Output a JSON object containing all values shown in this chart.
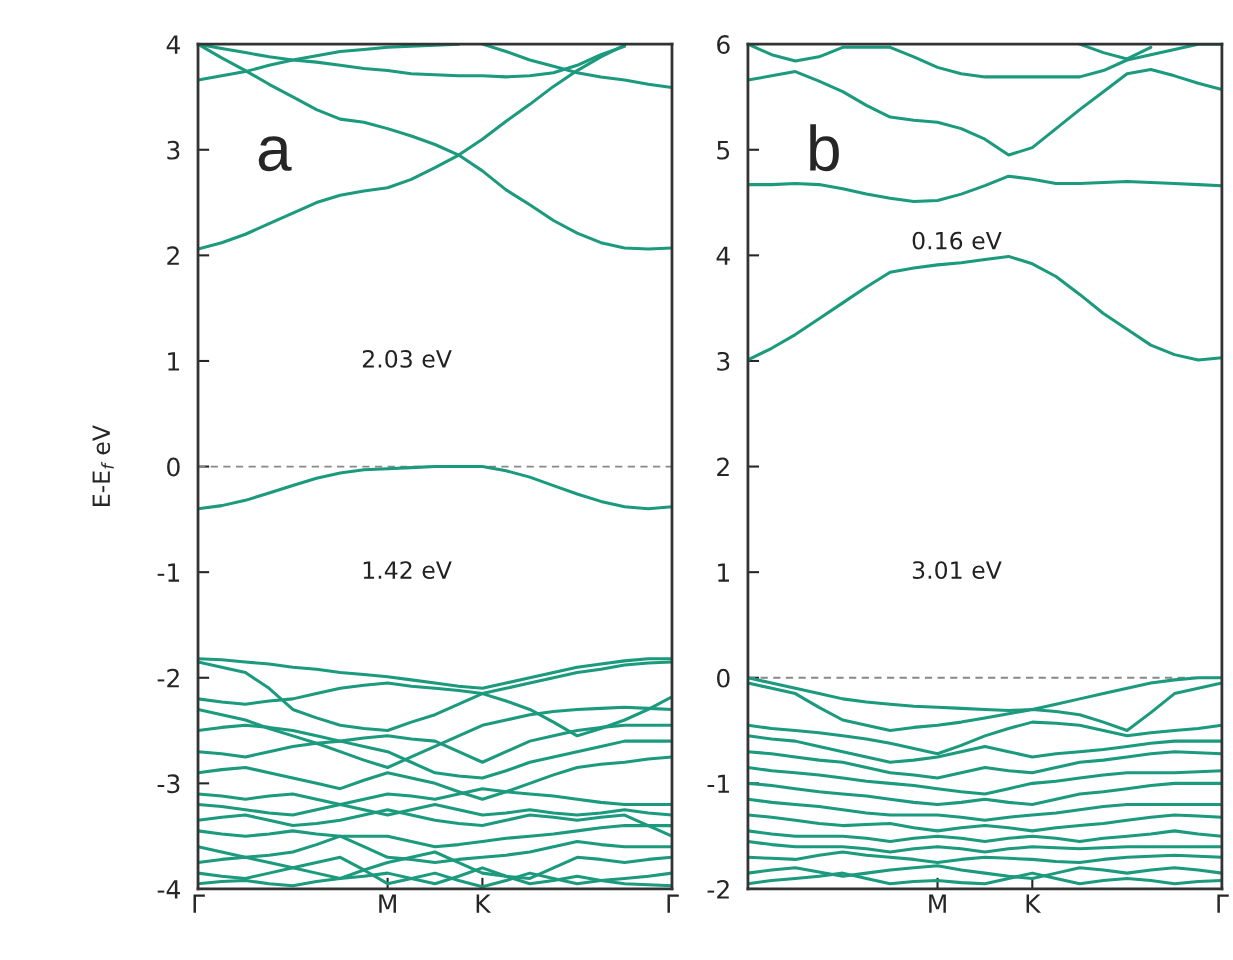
{
  "chart_data": [
    {
      "type": "line",
      "title": "a",
      "ylabel": "E-E$_{f}$ eV",
      "ylim": [
        -4,
        4
      ],
      "yticks": [
        -4,
        -3,
        -2,
        -1,
        0,
        1,
        2,
        3,
        4
      ],
      "categories": [
        "Γ",
        null,
        null,
        null,
        null,
        null,
        null,
        null,
        "M",
        null,
        null,
        null,
        "K",
        null,
        null,
        null,
        null,
        null,
        null,
        null,
        "Γ"
      ],
      "ref_lines": [
        {
          "axis": "y",
          "value": 0,
          "color": "#888888",
          "line_style": "dashed"
        }
      ],
      "annotations": [
        "2.03 eV",
        "1.42 eV"
      ],
      "series": [
        {
          "color": "#1b9a7e",
          "values": [
            2.06,
            2.12,
            2.2,
            2.3,
            2.4,
            2.5,
            2.57,
            2.61,
            2.64,
            2.72,
            2.83,
            2.95,
            3.1,
            3.27,
            3.43,
            3.6,
            3.75,
            3.88,
            3.99,
            null,
            null
          ]
        },
        {
          "color": "#1b9a7e",
          "values": [
            4.0,
            3.87,
            3.75,
            3.62,
            3.5,
            3.38,
            3.29,
            3.26,
            3.2,
            3.13,
            3.05,
            2.95,
            2.8,
            2.62,
            2.48,
            2.33,
            2.21,
            2.12,
            2.07,
            2.06,
            2.07
          ]
        },
        {
          "color": "#1b9a7e",
          "values": [
            3.66,
            3.7,
            3.74,
            3.8,
            3.85,
            3.89,
            3.93,
            3.95,
            3.97,
            3.98,
            3.99,
            4.0,
            null,
            null,
            null,
            null,
            null,
            null,
            null,
            null,
            null
          ]
        },
        {
          "color": "#1b9a7e",
          "values": [
            4.0,
            3.96,
            3.92,
            3.88,
            3.85,
            3.83,
            3.8,
            3.77,
            3.75,
            3.72,
            3.71,
            3.7,
            3.7,
            3.69,
            3.7,
            3.73,
            3.8,
            3.9,
            3.98,
            null,
            null
          ]
        },
        {
          "color": "#1b9a7e",
          "values": [
            null,
            null,
            null,
            null,
            null,
            null,
            null,
            null,
            null,
            null,
            null,
            null,
            4.0,
            3.93,
            3.85,
            3.79,
            3.73,
            3.69,
            3.66,
            3.62,
            3.59
          ]
        },
        {
          "color": "#1b9a7e",
          "values": [
            -0.4,
            -0.37,
            -0.32,
            -0.25,
            -0.18,
            -0.11,
            -0.06,
            -0.03,
            -0.02,
            -0.01,
            0,
            0,
            0,
            -0.04,
            -0.1,
            -0.18,
            -0.26,
            -0.33,
            -0.38,
            -0.4,
            -0.38
          ]
        },
        {
          "color": "#1b9a7e",
          "values": [
            -1.82,
            -1.83,
            -1.85,
            -1.87,
            -1.9,
            -1.92,
            -1.95,
            -1.97,
            -1.99,
            -2.02,
            -2.05,
            -2.08,
            -2.1,
            -2.05,
            -2.0,
            -1.95,
            -1.9,
            -1.87,
            -1.84,
            -1.82,
            -1.82
          ]
        },
        {
          "color": "#1b9a7e",
          "values": [
            -1.85,
            -1.9,
            -1.95,
            -2.1,
            -2.3,
            -2.38,
            -2.45,
            -2.48,
            -2.5,
            -2.42,
            -2.35,
            -2.25,
            -2.15,
            -2.1,
            -2.05,
            -2.0,
            -1.95,
            -1.92,
            -1.88,
            -1.86,
            -1.85
          ]
        },
        {
          "color": "#1b9a7e",
          "values": [
            -2.2,
            -2.23,
            -2.25,
            -2.22,
            -2.2,
            -2.15,
            -2.1,
            -2.07,
            -2.05,
            -2.08,
            -2.1,
            -2.12,
            -2.15,
            -2.22,
            -2.3,
            -2.42,
            -2.55,
            -2.48,
            -2.4,
            -2.3,
            -2.18
          ]
        },
        {
          "color": "#1b9a7e",
          "values": [
            -2.3,
            -2.35,
            -2.4,
            -2.48,
            -2.55,
            -2.62,
            -2.7,
            -2.78,
            -2.85,
            -2.75,
            -2.65,
            -2.55,
            -2.45,
            -2.4,
            -2.35,
            -2.32,
            -2.3,
            -2.29,
            -2.28,
            -2.29,
            -2.3
          ]
        },
        {
          "color": "#1b9a7e",
          "values": [
            -2.5,
            -2.47,
            -2.45,
            -2.47,
            -2.5,
            -2.55,
            -2.6,
            -2.57,
            -2.55,
            -2.58,
            -2.6,
            -2.7,
            -2.8,
            -2.7,
            -2.6,
            -2.55,
            -2.5,
            -2.47,
            -2.45,
            -2.45,
            -2.45
          ]
        },
        {
          "color": "#1b9a7e",
          "values": [
            -2.7,
            -2.72,
            -2.75,
            -2.7,
            -2.65,
            -2.62,
            -2.6,
            -2.65,
            -2.7,
            -2.8,
            -2.9,
            -2.93,
            -2.95,
            -2.88,
            -2.8,
            -2.75,
            -2.7,
            -2.65,
            -2.6,
            -2.6,
            -2.6
          ]
        },
        {
          "color": "#1b9a7e",
          "values": [
            -2.9,
            -2.87,
            -2.85,
            -2.9,
            -2.95,
            -3.0,
            -3.05,
            -2.97,
            -2.9,
            -2.95,
            -3.0,
            -3.08,
            -3.15,
            -3.08,
            -3.0,
            -2.92,
            -2.85,
            -2.82,
            -2.8,
            -2.77,
            -2.75
          ]
        },
        {
          "color": "#1b9a7e",
          "values": [
            -3.1,
            -3.12,
            -3.15,
            -3.12,
            -3.1,
            -3.15,
            -3.2,
            -3.15,
            -3.1,
            -3.12,
            -3.15,
            -3.1,
            -3.05,
            -3.08,
            -3.1,
            -3.12,
            -3.15,
            -3.18,
            -3.2,
            -3.2,
            -3.2
          ]
        },
        {
          "color": "#1b9a7e",
          "values": [
            -3.2,
            -3.22,
            -3.25,
            -3.28,
            -3.3,
            -3.25,
            -3.2,
            -3.25,
            -3.3,
            -3.25,
            -3.2,
            -3.25,
            -3.3,
            -3.28,
            -3.25,
            -3.28,
            -3.3,
            -3.28,
            -3.25,
            -3.28,
            -3.3
          ]
        },
        {
          "color": "#1b9a7e",
          "values": [
            -3.35,
            -3.32,
            -3.3,
            -3.35,
            -3.4,
            -3.38,
            -3.35,
            -3.3,
            -3.25,
            -3.3,
            -3.35,
            -3.38,
            -3.4,
            -3.35,
            -3.3,
            -3.32,
            -3.35,
            -3.32,
            -3.3,
            -3.4,
            -3.5
          ]
        },
        {
          "color": "#1b9a7e",
          "values": [
            -3.45,
            -3.48,
            -3.5,
            -3.48,
            -3.45,
            -3.48,
            -3.5,
            -3.5,
            -3.5,
            -3.55,
            -3.6,
            -3.58,
            -3.55,
            -3.52,
            -3.5,
            -3.48,
            -3.45,
            -3.42,
            -3.4,
            -3.4,
            -3.4
          ]
        },
        {
          "color": "#1b9a7e",
          "values": [
            -3.6,
            -3.65,
            -3.7,
            -3.68,
            -3.65,
            -3.58,
            -3.5,
            -3.6,
            -3.7,
            -3.72,
            -3.75,
            -3.72,
            -3.7,
            -3.68,
            -3.65,
            -3.6,
            -3.55,
            -3.58,
            -3.6,
            -3.6,
            -3.6
          ]
        },
        {
          "color": "#1b9a7e",
          "values": [
            -3.75,
            -3.72,
            -3.7,
            -3.75,
            -3.8,
            -3.85,
            -3.9,
            -3.82,
            -3.75,
            -3.7,
            -3.65,
            -3.75,
            -3.85,
            -3.88,
            -3.9,
            -3.8,
            -3.7,
            -3.72,
            -3.75,
            -3.72,
            -3.7
          ]
        },
        {
          "color": "#1b9a7e",
          "values": [
            -3.85,
            -3.88,
            -3.9,
            -3.85,
            -3.8,
            -3.75,
            -3.7,
            -3.82,
            -3.95,
            -3.9,
            -3.85,
            -3.92,
            -3.98,
            -3.92,
            -3.85,
            -3.9,
            -3.95,
            -3.92,
            -3.9,
            -3.88,
            -3.85
          ]
        },
        {
          "color": "#1b9a7e",
          "values": [
            -3.95,
            -3.93,
            -3.92,
            -3.95,
            -3.97,
            -3.93,
            -3.9,
            -3.88,
            -3.85,
            -3.9,
            -3.95,
            -3.88,
            -3.8,
            -3.88,
            -3.95,
            -3.92,
            -3.88,
            -3.92,
            -3.95,
            -3.96,
            -3.97
          ]
        }
      ]
    },
    {
      "type": "line",
      "title": "b",
      "ylim": [
        -2,
        6
      ],
      "yticks": [
        -2,
        -1,
        0,
        1,
        2,
        3,
        4,
        5,
        6
      ],
      "categories": [
        null,
        null,
        null,
        null,
        null,
        null,
        null,
        null,
        "M",
        null,
        null,
        null,
        "K",
        null,
        null,
        null,
        null,
        null,
        null,
        null,
        "Γ"
      ],
      "ref_lines": [
        {
          "axis": "y",
          "value": 0,
          "color": "#888888",
          "line_style": "dashed"
        }
      ],
      "annotations": [
        "0.16 eV",
        "3.01 eV"
      ],
      "series": [
        {
          "color": "#1b9a7e",
          "values": [
            3.01,
            3.12,
            3.25,
            3.4,
            3.55,
            3.7,
            3.84,
            3.88,
            3.91,
            3.93,
            3.96,
            3.99,
            3.92,
            3.8,
            3.63,
            3.45,
            3.3,
            3.15,
            3.06,
            3.01,
            3.03
          ]
        },
        {
          "color": "#1b9a7e",
          "values": [
            4.67,
            4.67,
            4.68,
            4.67,
            4.63,
            4.58,
            4.54,
            4.51,
            4.52,
            4.58,
            4.66,
            4.75,
            4.72,
            4.68,
            4.68,
            4.69,
            4.7,
            4.69,
            4.68,
            4.67,
            4.66
          ]
        },
        {
          "color": "#1b9a7e",
          "values": [
            5.66,
            5.7,
            5.74,
            5.65,
            5.55,
            5.42,
            5.31,
            5.28,
            5.26,
            5.2,
            5.1,
            4.95,
            5.02,
            5.2,
            5.38,
            5.55,
            5.72,
            5.76,
            5.7,
            5.63,
            5.57
          ]
        },
        {
          "color": "#1b9a7e",
          "values": [
            6.0,
            5.9,
            5.84,
            5.88,
            5.97,
            5.97,
            5.97,
            5.88,
            5.78,
            5.72,
            5.69,
            5.69,
            5.69,
            5.69,
            5.69,
            5.75,
            5.85,
            5.9,
            5.95,
            6.0,
            6.0
          ]
        },
        {
          "color": "#1b9a7e",
          "values": [
            null,
            null,
            null,
            null,
            null,
            null,
            null,
            null,
            null,
            null,
            null,
            null,
            null,
            null,
            6.0,
            5.92,
            5.86,
            5.97,
            null,
            null,
            null
          ]
        },
        {
          "color": "#1b9a7e",
          "values": [
            0,
            -0.05,
            -0.1,
            -0.15,
            -0.2,
            -0.23,
            -0.25,
            -0.27,
            -0.28,
            -0.29,
            -0.3,
            -0.31,
            -0.3,
            -0.25,
            -0.2,
            -0.15,
            -0.1,
            -0.05,
            -0.02,
            0,
            0
          ]
        },
        {
          "color": "#1b9a7e",
          "values": [
            -0.05,
            -0.1,
            -0.15,
            -0.28,
            -0.4,
            -0.45,
            -0.5,
            -0.47,
            -0.45,
            -0.42,
            -0.38,
            -0.34,
            -0.3,
            -0.32,
            -0.35,
            -0.42,
            -0.5,
            -0.33,
            -0.15,
            -0.1,
            -0.05
          ]
        },
        {
          "color": "#1b9a7e",
          "values": [
            -0.45,
            -0.48,
            -0.5,
            -0.52,
            -0.55,
            -0.58,
            -0.62,
            -0.67,
            -0.72,
            -0.64,
            -0.55,
            -0.48,
            -0.42,
            -0.43,
            -0.45,
            -0.5,
            -0.55,
            -0.52,
            -0.5,
            -0.48,
            -0.45
          ]
        },
        {
          "color": "#1b9a7e",
          "values": [
            -0.55,
            -0.58,
            -0.6,
            -0.65,
            -0.7,
            -0.75,
            -0.8,
            -0.78,
            -0.75,
            -0.7,
            -0.65,
            -0.7,
            -0.75,
            -0.72,
            -0.7,
            -0.68,
            -0.65,
            -0.62,
            -0.6,
            -0.6,
            -0.6
          ]
        },
        {
          "color": "#1b9a7e",
          "values": [
            -0.7,
            -0.72,
            -0.75,
            -0.78,
            -0.8,
            -0.85,
            -0.9,
            -0.92,
            -0.95,
            -0.9,
            -0.85,
            -0.88,
            -0.9,
            -0.85,
            -0.8,
            -0.78,
            -0.75,
            -0.72,
            -0.7,
            -0.71,
            -0.72
          ]
        },
        {
          "color": "#1b9a7e",
          "values": [
            -0.85,
            -0.88,
            -0.9,
            -0.92,
            -0.95,
            -0.98,
            -1.0,
            -1.02,
            -1.05,
            -1.08,
            -1.1,
            -1.05,
            -1.0,
            -0.98,
            -0.95,
            -0.92,
            -0.9,
            -0.9,
            -0.9,
            -0.89,
            -0.88
          ]
        },
        {
          "color": "#1b9a7e",
          "values": [
            -1.0,
            -1.02,
            -1.05,
            -1.08,
            -1.1,
            -1.12,
            -1.15,
            -1.18,
            -1.2,
            -1.18,
            -1.15,
            -1.18,
            -1.2,
            -1.15,
            -1.1,
            -1.08,
            -1.05,
            -1.02,
            -1.0,
            -1.0,
            -1.0
          ]
        },
        {
          "color": "#1b9a7e",
          "values": [
            -1.15,
            -1.18,
            -1.2,
            -1.22,
            -1.25,
            -1.28,
            -1.3,
            -1.3,
            -1.3,
            -1.32,
            -1.35,
            -1.32,
            -1.3,
            -1.28,
            -1.25,
            -1.22,
            -1.2,
            -1.2,
            -1.2,
            -1.2,
            -1.2
          ]
        },
        {
          "color": "#1b9a7e",
          "values": [
            -1.3,
            -1.32,
            -1.35,
            -1.38,
            -1.4,
            -1.39,
            -1.38,
            -1.42,
            -1.45,
            -1.42,
            -1.4,
            -1.42,
            -1.45,
            -1.42,
            -1.4,
            -1.38,
            -1.35,
            -1.32,
            -1.3,
            -1.31,
            -1.32
          ]
        },
        {
          "color": "#1b9a7e",
          "values": [
            -1.45,
            -1.48,
            -1.5,
            -1.5,
            -1.5,
            -1.52,
            -1.55,
            -1.52,
            -1.5,
            -1.52,
            -1.55,
            -1.52,
            -1.5,
            -1.52,
            -1.55,
            -1.52,
            -1.5,
            -1.48,
            -1.45,
            -1.48,
            -1.5
          ]
        },
        {
          "color": "#1b9a7e",
          "values": [
            -1.55,
            -1.58,
            -1.6,
            -1.6,
            -1.6,
            -1.62,
            -1.65,
            -1.62,
            -1.6,
            -1.62,
            -1.65,
            -1.62,
            -1.6,
            -1.61,
            -1.62,
            -1.61,
            -1.6,
            -1.6,
            -1.6,
            -1.6,
            -1.6
          ]
        },
        {
          "color": "#1b9a7e",
          "values": [
            -1.7,
            -1.71,
            -1.72,
            -1.68,
            -1.65,
            -1.68,
            -1.7,
            -1.72,
            -1.75,
            -1.72,
            -1.7,
            -1.71,
            -1.72,
            -1.74,
            -1.75,
            -1.72,
            -1.7,
            -1.69,
            -1.68,
            -1.69,
            -1.7
          ]
        },
        {
          "color": "#1b9a7e",
          "values": [
            -1.85,
            -1.82,
            -1.8,
            -1.84,
            -1.88,
            -1.85,
            -1.82,
            -1.8,
            -1.78,
            -1.82,
            -1.85,
            -1.88,
            -1.9,
            -1.85,
            -1.8,
            -1.82,
            -1.85,
            -1.82,
            -1.8,
            -1.82,
            -1.85
          ]
        },
        {
          "color": "#1b9a7e",
          "values": [
            -1.95,
            -1.92,
            -1.9,
            -1.88,
            -1.85,
            -1.9,
            -1.95,
            -1.93,
            -1.92,
            -1.94,
            -1.95,
            -1.9,
            -1.85,
            -1.9,
            -1.95,
            -1.92,
            -1.9,
            -1.92,
            -1.95,
            -1.93,
            -1.92
          ]
        }
      ]
    }
  ]
}
